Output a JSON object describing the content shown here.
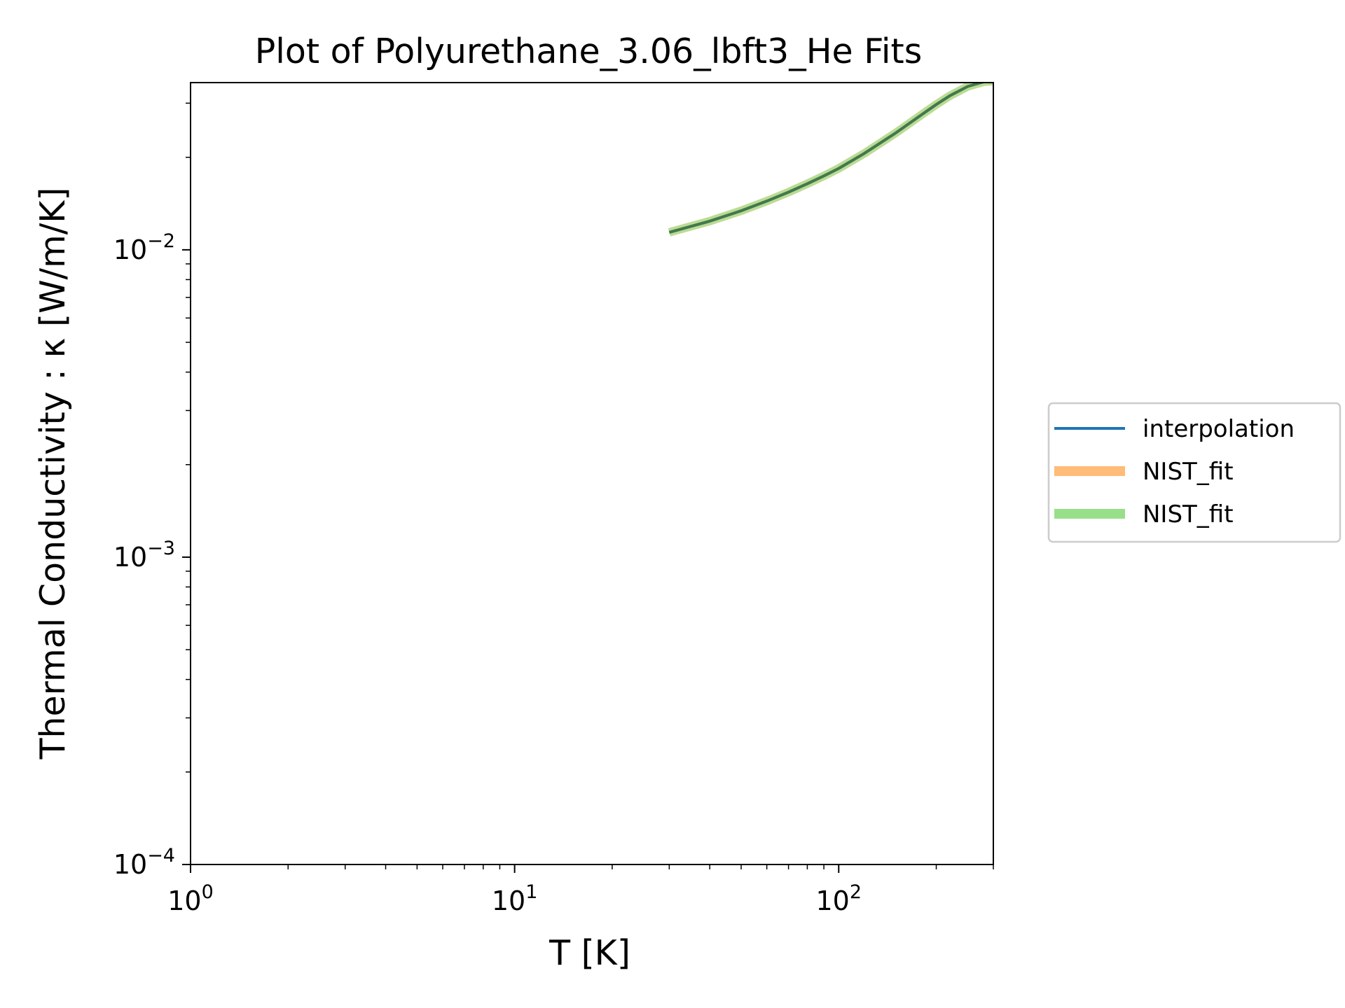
{
  "chart_data": {
    "type": "line",
    "title": "Plot of Polyurethane_3.06_lbft3_He Fits",
    "xlabel": "T [K]",
    "ylabel": "Thermal Conductivity : κ [W/m/K]",
    "xscale": "log",
    "yscale": "log",
    "xlim": [
      1,
      300
    ],
    "ylim": [
      0.0001,
      0.035
    ],
    "grid": false,
    "legend_position": "right, outside plot",
    "x_ticks": [
      {
        "value": 1,
        "base": "10",
        "exp": "0"
      },
      {
        "value": 10,
        "base": "10",
        "exp": "1"
      },
      {
        "value": 100,
        "base": "10",
        "exp": "2"
      }
    ],
    "y_ticks": [
      {
        "value": 0.0001,
        "base": "10",
        "exp": "−4"
      },
      {
        "value": 0.001,
        "base": "10",
        "exp": "−3"
      },
      {
        "value": 0.01,
        "base": "10",
        "exp": "−2"
      }
    ],
    "x": [
      30,
      40,
      50,
      60,
      70,
      80,
      90,
      100,
      120,
      150,
      180,
      200,
      220,
      250,
      280,
      300
    ],
    "series": [
      {
        "name": "interpolation",
        "color": "#1f77b4",
        "style": "thin",
        "values": [
          0.0114,
          0.0124,
          0.0134,
          0.0144,
          0.0154,
          0.0164,
          0.0174,
          0.0184,
          0.0206,
          0.024,
          0.0275,
          0.0297,
          0.0317,
          0.034,
          0.0352,
          0.0354
        ]
      },
      {
        "name": "NIST_fit",
        "color": "#ffbb78",
        "style": "thick",
        "values": [
          0.0114,
          0.0124,
          0.0134,
          0.0144,
          0.0154,
          0.0164,
          0.0174,
          0.0184,
          0.0206,
          0.024,
          0.0275,
          0.0297,
          0.0317,
          0.034,
          0.0352,
          0.0354
        ]
      },
      {
        "name": "NIST_fit",
        "color": "#98df8a",
        "style": "thick",
        "values": [
          0.0114,
          0.0124,
          0.0134,
          0.0144,
          0.0154,
          0.0164,
          0.0174,
          0.0184,
          0.0206,
          0.024,
          0.0275,
          0.0297,
          0.0317,
          0.034,
          0.0352,
          0.0354
        ]
      }
    ]
  }
}
